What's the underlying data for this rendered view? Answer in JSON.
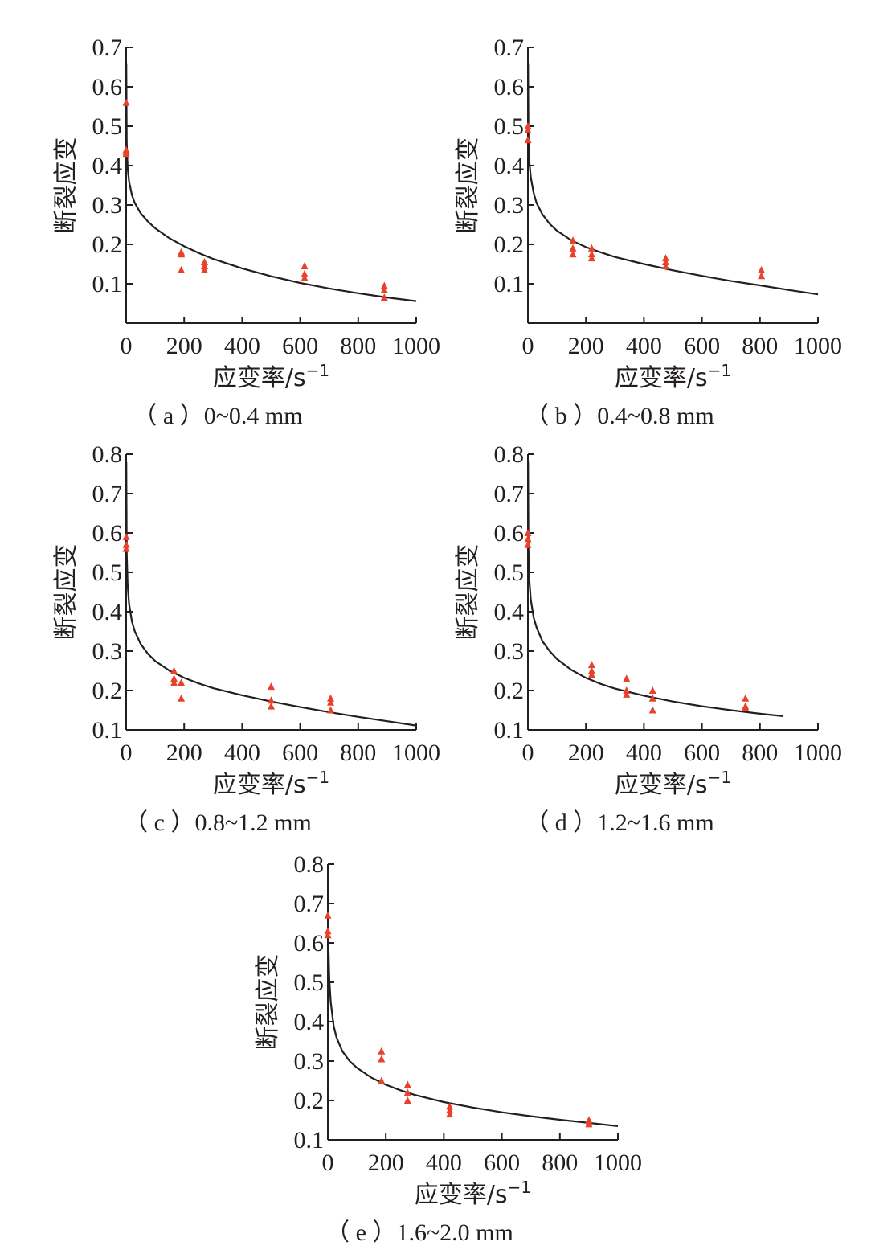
{
  "chart_data": [
    {
      "type": "scatter",
      "caption": "（ a ）0~0.4 mm",
      "xlabel": "应变率/s",
      "xlabel_superscript": "−1",
      "ylabel": "断裂应变",
      "xlim": [
        0,
        1000
      ],
      "ylim": [
        0.0,
        0.7
      ],
      "xticks": [
        0,
        200,
        400,
        600,
        800,
        1000
      ],
      "yticks": [
        0.1,
        0.2,
        0.3,
        0.4,
        0.5,
        0.6,
        0.7
      ],
      "ytick_labels": [
        "0.1",
        "0.2",
        "0.3",
        "0.4",
        "0.5",
        "0.6",
        "0.7"
      ],
      "marker_color": "#e8412c",
      "series": [
        {
          "kind": "points",
          "marker": "triangle",
          "x": [
            0,
            0,
            0,
            0,
            190,
            190,
            190,
            270,
            270,
            270,
            615,
            615,
            615,
            890,
            890,
            890
          ],
          "y": [
            0.56,
            0.44,
            0.435,
            0.43,
            0.18,
            0.175,
            0.135,
            0.155,
            0.145,
            0.135,
            0.145,
            0.125,
            0.115,
            0.095,
            0.085,
            0.065
          ]
        },
        {
          "kind": "fit",
          "x": [
            0.5,
            2,
            5,
            10,
            20,
            30,
            50,
            75,
            100,
            150,
            200,
            250,
            300,
            400,
            500,
            600,
            700,
            800,
            900,
            1000
          ],
          "y": [
            0.66,
            0.46,
            0.395,
            0.36,
            0.325,
            0.305,
            0.279,
            0.258,
            0.241,
            0.215,
            0.195,
            0.178,
            0.163,
            0.139,
            0.119,
            0.102,
            0.088,
            0.076,
            0.065,
            0.056
          ]
        }
      ]
    },
    {
      "type": "scatter",
      "caption": "（ b ）0.4~0.8 mm",
      "xlabel": "应变率/s",
      "xlabel_superscript": "−1",
      "ylabel": "断裂应变",
      "xlim": [
        0,
        1000
      ],
      "ylim": [
        0.0,
        0.7
      ],
      "xticks": [
        0,
        200,
        400,
        600,
        800,
        1000
      ],
      "yticks": [
        0.1,
        0.2,
        0.3,
        0.4,
        0.5,
        0.6,
        0.7
      ],
      "ytick_labels": [
        "0.1",
        "0.2",
        "0.3",
        "0.4",
        "0.5",
        "0.6",
        "0.7"
      ],
      "marker_color": "#e8412c",
      "series": [
        {
          "kind": "points",
          "marker": "triangle",
          "x": [
            0,
            0,
            0,
            155,
            155,
            155,
            220,
            220,
            220,
            475,
            475,
            475,
            805,
            805
          ],
          "y": [
            0.5,
            0.49,
            0.465,
            0.21,
            0.19,
            0.175,
            0.19,
            0.175,
            0.165,
            0.165,
            0.155,
            0.145,
            0.135,
            0.12
          ]
        },
        {
          "kind": "fit",
          "x": [
            0.5,
            2,
            5,
            10,
            20,
            30,
            50,
            75,
            100,
            150,
            200,
            250,
            300,
            400,
            500,
            600,
            700,
            800,
            900,
            1000
          ],
          "y": [
            0.66,
            0.48,
            0.41,
            0.37,
            0.33,
            0.305,
            0.276,
            0.252,
            0.235,
            0.21,
            0.193,
            0.18,
            0.168,
            0.15,
            0.134,
            0.12,
            0.107,
            0.096,
            0.084,
            0.073
          ]
        }
      ]
    },
    {
      "type": "scatter",
      "caption": "（ c ）0.8~1.2 mm",
      "xlabel": "应变率/s",
      "xlabel_superscript": "−1",
      "ylabel": "断裂应变",
      "xlim": [
        0,
        1000
      ],
      "ylim": [
        0.1,
        0.8
      ],
      "xticks": [
        0,
        200,
        400,
        600,
        800,
        1000
      ],
      "yticks": [
        0.1,
        0.2,
        0.3,
        0.4,
        0.5,
        0.6,
        0.7,
        0.8
      ],
      "ytick_labels": [
        "0.1",
        "0.2",
        "0.3",
        "0.4",
        "0.5",
        "0.6",
        "0.7",
        "0.8"
      ],
      "marker_color": "#e8412c",
      "series": [
        {
          "kind": "points",
          "marker": "triangle",
          "x": [
            0,
            0,
            0,
            165,
            165,
            165,
            190,
            190,
            500,
            500,
            500,
            705,
            705,
            705
          ],
          "y": [
            0.59,
            0.57,
            0.56,
            0.25,
            0.23,
            0.22,
            0.22,
            0.18,
            0.21,
            0.175,
            0.16,
            0.18,
            0.17,
            0.15
          ]
        },
        {
          "kind": "fit",
          "x": [
            0.5,
            2,
            5,
            10,
            20,
            30,
            50,
            75,
            100,
            150,
            200,
            250,
            300,
            400,
            500,
            600,
            700,
            800,
            900,
            1000
          ],
          "y": [
            0.78,
            0.55,
            0.47,
            0.42,
            0.375,
            0.35,
            0.318,
            0.293,
            0.275,
            0.25,
            0.232,
            0.218,
            0.206,
            0.188,
            0.172,
            0.158,
            0.145,
            0.133,
            0.122,
            0.111
          ]
        }
      ]
    },
    {
      "type": "scatter",
      "caption": "（ d ）1.2~1.6 mm",
      "xlabel": "应变率/s",
      "xlabel_superscript": "−1",
      "ylabel": "断裂应变",
      "xlim": [
        0,
        1000
      ],
      "ylim": [
        0.1,
        0.8
      ],
      "xticks": [
        0,
        200,
        400,
        600,
        800,
        1000
      ],
      "yticks": [
        0.1,
        0.2,
        0.3,
        0.4,
        0.5,
        0.6,
        0.7,
        0.8
      ],
      "ytick_labels": [
        "0.1",
        "0.2",
        "0.3",
        "0.4",
        "0.5",
        "0.6",
        "0.7",
        "0.8"
      ],
      "marker_color": "#e8412c",
      "series": [
        {
          "kind": "points",
          "marker": "triangle",
          "x": [
            0,
            0,
            0,
            220,
            220,
            220,
            340,
            340,
            340,
            430,
            430,
            430,
            750,
            750,
            750
          ],
          "y": [
            0.6,
            0.585,
            0.57,
            0.265,
            0.25,
            0.24,
            0.23,
            0.2,
            0.19,
            0.2,
            0.18,
            0.15,
            0.18,
            0.16,
            0.155
          ]
        },
        {
          "kind": "fit",
          "x": [
            0.5,
            2,
            5,
            10,
            20,
            30,
            50,
            75,
            100,
            150,
            200,
            250,
            300,
            400,
            500,
            600,
            700,
            800,
            880
          ],
          "y": [
            0.78,
            0.56,
            0.48,
            0.43,
            0.385,
            0.36,
            0.325,
            0.3,
            0.28,
            0.252,
            0.232,
            0.217,
            0.205,
            0.187,
            0.172,
            0.16,
            0.15,
            0.141,
            0.135
          ]
        }
      ]
    },
    {
      "type": "scatter",
      "caption": "（ e ）1.6~2.0 mm",
      "xlabel": "应变率/s",
      "xlabel_superscript": "−1",
      "ylabel": "断裂应变",
      "xlim": [
        0,
        1000
      ],
      "ylim": [
        0.1,
        0.8
      ],
      "xticks": [
        0,
        200,
        400,
        600,
        800,
        1000
      ],
      "yticks": [
        0.1,
        0.2,
        0.3,
        0.4,
        0.5,
        0.6,
        0.7,
        0.8
      ],
      "ytick_labels": [
        "0.1",
        "0.2",
        "0.3",
        "0.4",
        "0.5",
        "0.6",
        "0.7",
        "0.8"
      ],
      "marker_color": "#e8412c",
      "series": [
        {
          "kind": "points",
          "marker": "triangle",
          "x": [
            0,
            0,
            0,
            185,
            185,
            185,
            275,
            275,
            275,
            420,
            420,
            420,
            900,
            900,
            900
          ],
          "y": [
            0.67,
            0.63,
            0.62,
            0.325,
            0.305,
            0.25,
            0.24,
            0.22,
            0.2,
            0.185,
            0.175,
            0.165,
            0.15,
            0.145,
            0.14
          ]
        },
        {
          "kind": "fit",
          "x": [
            0.5,
            2,
            5,
            10,
            20,
            30,
            50,
            75,
            100,
            150,
            200,
            250,
            300,
            400,
            500,
            600,
            700,
            800,
            900,
            1000
          ],
          "y": [
            0.8,
            0.6,
            0.51,
            0.45,
            0.39,
            0.36,
            0.325,
            0.3,
            0.283,
            0.258,
            0.24,
            0.226,
            0.214,
            0.196,
            0.182,
            0.17,
            0.16,
            0.151,
            0.143,
            0.135
          ]
        }
      ]
    }
  ]
}
